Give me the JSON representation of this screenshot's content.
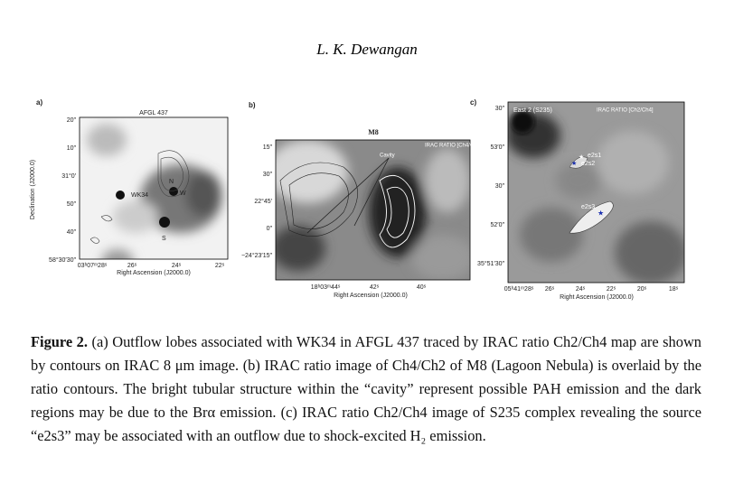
{
  "header": {
    "author": "L. K. Dewangan"
  },
  "panels": [
    {
      "label": "a)",
      "title": "AFGL 437",
      "yticks": [
        "20″",
        "10″",
        "31°0′",
        "50″",
        "40″",
        "58°30′30″"
      ],
      "xticks": [
        "03ʰ07ᵐ28ˢ",
        "26ˢ",
        "24ˢ",
        "22ˢ"
      ],
      "ylabel": "Declination (J2000.0)",
      "xlabel": "Right Ascension (J2000.0)",
      "annotations": [
        "WK34",
        "N",
        "W",
        "S"
      ]
    },
    {
      "label": "b)",
      "title": "M8",
      "inner_title": "IRAC RATIO [Ch4/Ch2]",
      "yticks": [
        "15″",
        "30″",
        "22°45′",
        "0″",
        "−24°23′15″"
      ],
      "xticks": [
        "18ʰ03ᵐ44ˢ",
        "42ˢ",
        "40ˢ"
      ],
      "xlabel": "Right Ascension (J2000.0)",
      "annotations": [
        "Cavity"
      ]
    },
    {
      "label": "c)",
      "title": "East 2 (S235)",
      "inner_title": "IRAC RATIO [Ch2/Ch4]",
      "yticks": [
        "30″",
        "53′0″",
        "30″",
        "52′0″",
        "35°51′30″"
      ],
      "xticks": [
        "05ʰ41ᵐ28ˢ",
        "26ˢ",
        "24ˢ",
        "22ˢ",
        "20ˢ",
        "18ˢ"
      ],
      "xlabel": "Right Ascension (J2000.0)",
      "annotations": [
        "e2s1",
        "e2s2",
        "e2s3"
      ]
    }
  ],
  "caption": {
    "label": "Figure 2.",
    "text": "(a) Outflow lobes associated with WK34 in AFGL 437 traced by IRAC ratio Ch2/Ch4 map are shown by contours on IRAC 8 μm image. (b) IRAC ratio image of Ch4/Ch2 of M8 (Lagoon Nebula) is overlaid by the ratio contours. The bright tubular structure within the “cavity” represent possible PAH emission and the dark regions may be due to the Brα emission. (c) IRAC ratio Ch2/Ch4 image of S235 complex revealing the source “e2s3” may be associated with an outflow due to shock-excited H₂ emission."
  }
}
